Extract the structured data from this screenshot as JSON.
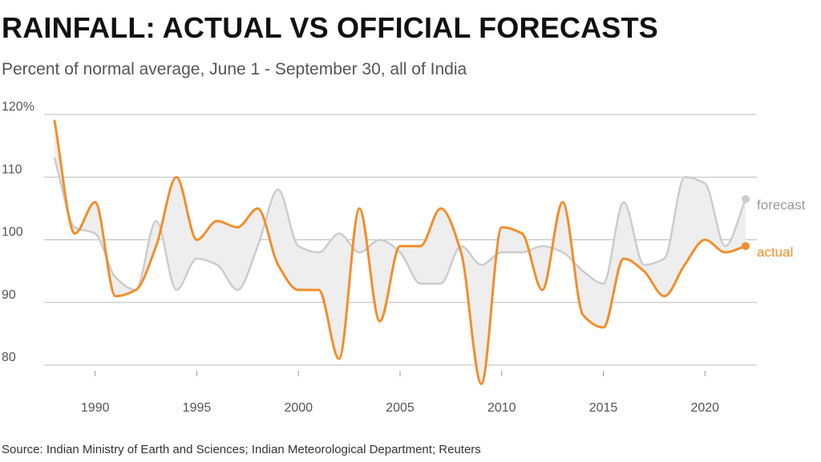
{
  "title": "RAINFALL: ACTUAL VS OFFICIAL FORECASTS",
  "subtitle": "Percent of normal average, June 1 - September 30, all of India",
  "source": "Source: Indian Ministry of Earth and Sciences; Indian Meteorological Department; Reuters",
  "chart_data": {
    "type": "line",
    "title": "RAINFALL: ACTUAL VS OFFICIAL FORECASTS",
    "subtitle": "Percent of normal average, June 1 - September 30, all of India",
    "xlabel": "",
    "ylabel": "",
    "xlim": [
      1988,
      2022
    ],
    "ylim": [
      75,
      121
    ],
    "grid": true,
    "y_ticks": [
      80,
      90,
      100,
      110,
      120
    ],
    "y_tick_labels": [
      "80",
      "90",
      "100",
      "110",
      "120%"
    ],
    "x_ticks": [
      1990,
      1995,
      2000,
      2005,
      2010,
      2015,
      2020
    ],
    "x_tick_labels": [
      "1990",
      "1995",
      "2000",
      "2005",
      "2010",
      "2015",
      "2020"
    ],
    "x": [
      1988,
      1989,
      1990,
      1991,
      1992,
      1993,
      1994,
      1995,
      1996,
      1997,
      1998,
      1999,
      2000,
      2001,
      2002,
      2003,
      2004,
      2005,
      2006,
      2007,
      2008,
      2009,
      2010,
      2011,
      2012,
      2013,
      2014,
      2015,
      2016,
      2017,
      2018,
      2019,
      2020,
      2021,
      2022
    ],
    "series": [
      {
        "name": "forecast",
        "color": "#cccccc",
        "values": [
          113,
          102,
          101,
          94,
          92,
          103,
          92,
          97,
          96,
          92,
          99,
          108,
          99,
          98,
          101,
          98,
          100,
          98,
          93,
          93,
          99,
          96,
          98,
          98,
          99,
          98,
          95,
          93,
          106,
          96,
          97,
          110,
          109,
          99,
          106.5
        ]
      },
      {
        "name": "actual",
        "color": "#f28e2b",
        "values": [
          119,
          101,
          106,
          91,
          92,
          99,
          110,
          100,
          103,
          102,
          105,
          96,
          92,
          92,
          81,
          105,
          87,
          99,
          99,
          105,
          98,
          77,
          102,
          101,
          92,
          106,
          88,
          86,
          97,
          95,
          91,
          96,
          100,
          98,
          99
        ]
      }
    ],
    "legend": "inline-right",
    "colors": {
      "forecast": "#cccccc",
      "actual": "#f28e2b",
      "band": "#eeeeee",
      "grid": "#bbbbbb"
    }
  }
}
